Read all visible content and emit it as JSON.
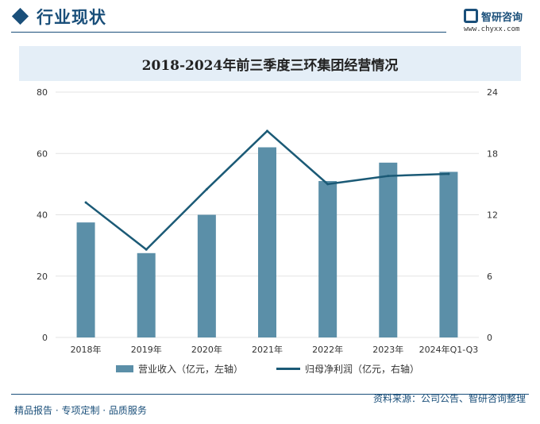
{
  "header": {
    "section_title": "行业现状",
    "logo_name": "智研咨询",
    "logo_url": "www.chyxx.com"
  },
  "chart_data": {
    "type": "bar",
    "title": "2018-2024年前三季度三环集团经营情况",
    "categories": [
      "2018年",
      "2019年",
      "2020年",
      "2021年",
      "2022年",
      "2023年",
      "2024年Q1-Q3"
    ],
    "series": [
      {
        "name": "营业收入（亿元，左轴）",
        "type": "bar",
        "axis": "left",
        "color": "#5b8fa8",
        "values": [
          37.5,
          27.5,
          40,
          62,
          51,
          57,
          54
        ]
      },
      {
        "name": "归母净利润（亿元，右轴）",
        "type": "line",
        "axis": "right",
        "color": "#1b5a76",
        "values": [
          13.2,
          8.6,
          14.5,
          20.2,
          15.0,
          15.8,
          16.0
        ]
      }
    ],
    "ylim_left": [
      0,
      80
    ],
    "yticks_left": [
      "0",
      "20",
      "40",
      "60",
      "80"
    ],
    "ylim_right": [
      0,
      24
    ],
    "yticks_right": [
      "0",
      "6",
      "12",
      "18",
      "24"
    ],
    "grid": true,
    "legend_position": "bottom"
  },
  "footer": {
    "left": "精品报告 · 专项定制 · 品质服务",
    "right": "资料来源：公司公告、智研咨询整理"
  }
}
